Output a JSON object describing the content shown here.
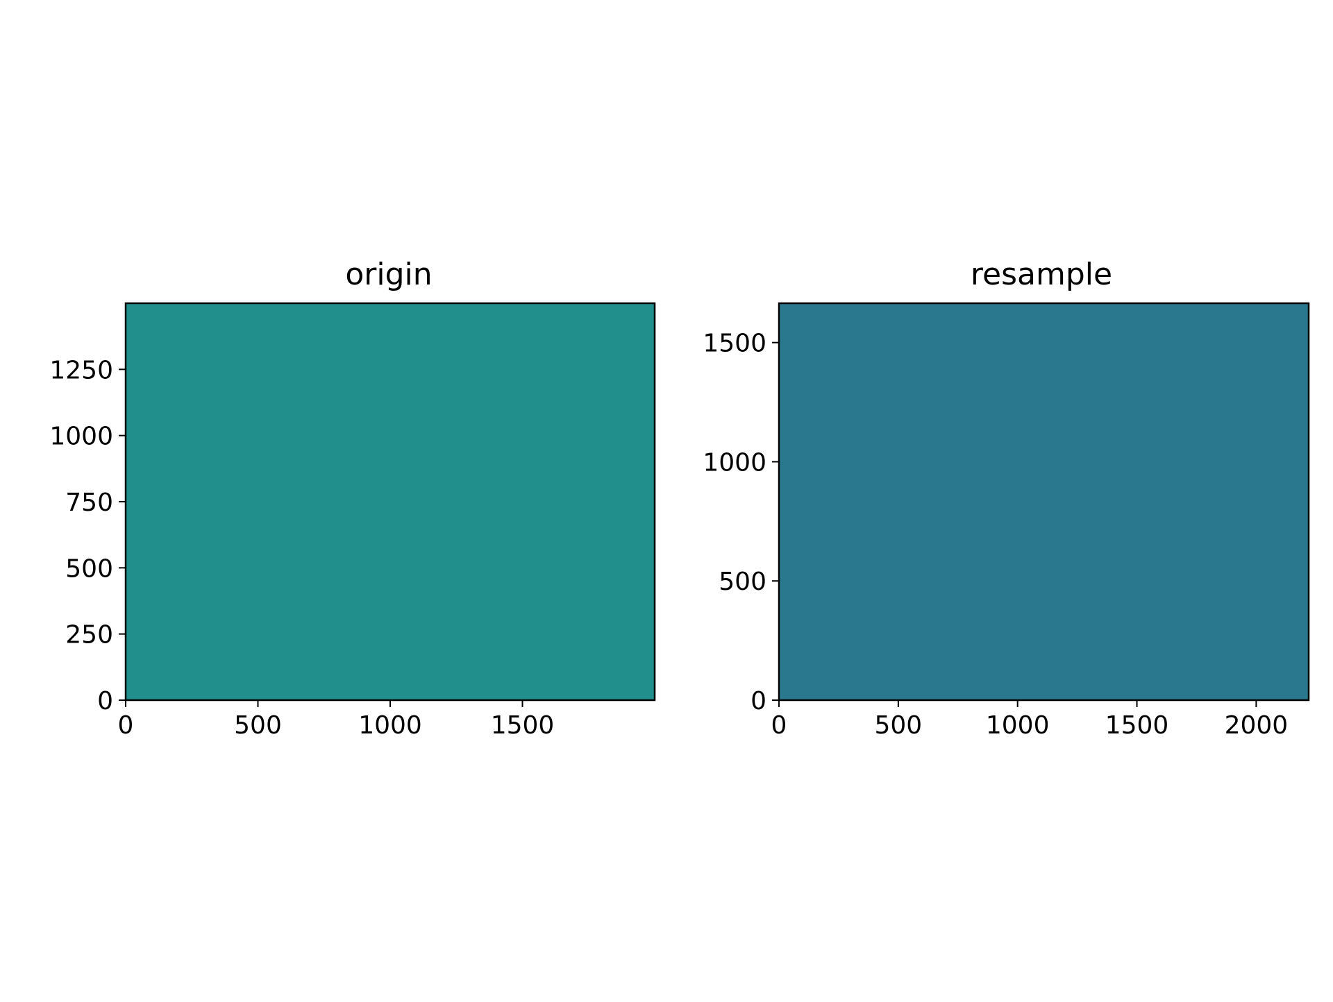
{
  "chart_data": [
    {
      "type": "heatmap",
      "title": "origin",
      "xlabel": "",
      "ylabel": "",
      "xlim": [
        0,
        2000
      ],
      "ylim": [
        0,
        1500
      ],
      "xticks": [
        0,
        500,
        1000,
        1500
      ],
      "yticks": [
        0,
        250,
        500,
        750,
        1000,
        1250
      ],
      "fill_color": "#21908d",
      "grid": false
    },
    {
      "type": "heatmap",
      "title": "resample",
      "xlabel": "",
      "ylabel": "",
      "xlim": [
        0,
        2220
      ],
      "ylim": [
        0,
        1665
      ],
      "xticks": [
        0,
        500,
        1000,
        1500,
        2000
      ],
      "yticks": [
        0,
        500,
        1000,
        1500
      ],
      "fill_color": "#2a788e",
      "grid": false
    }
  ]
}
